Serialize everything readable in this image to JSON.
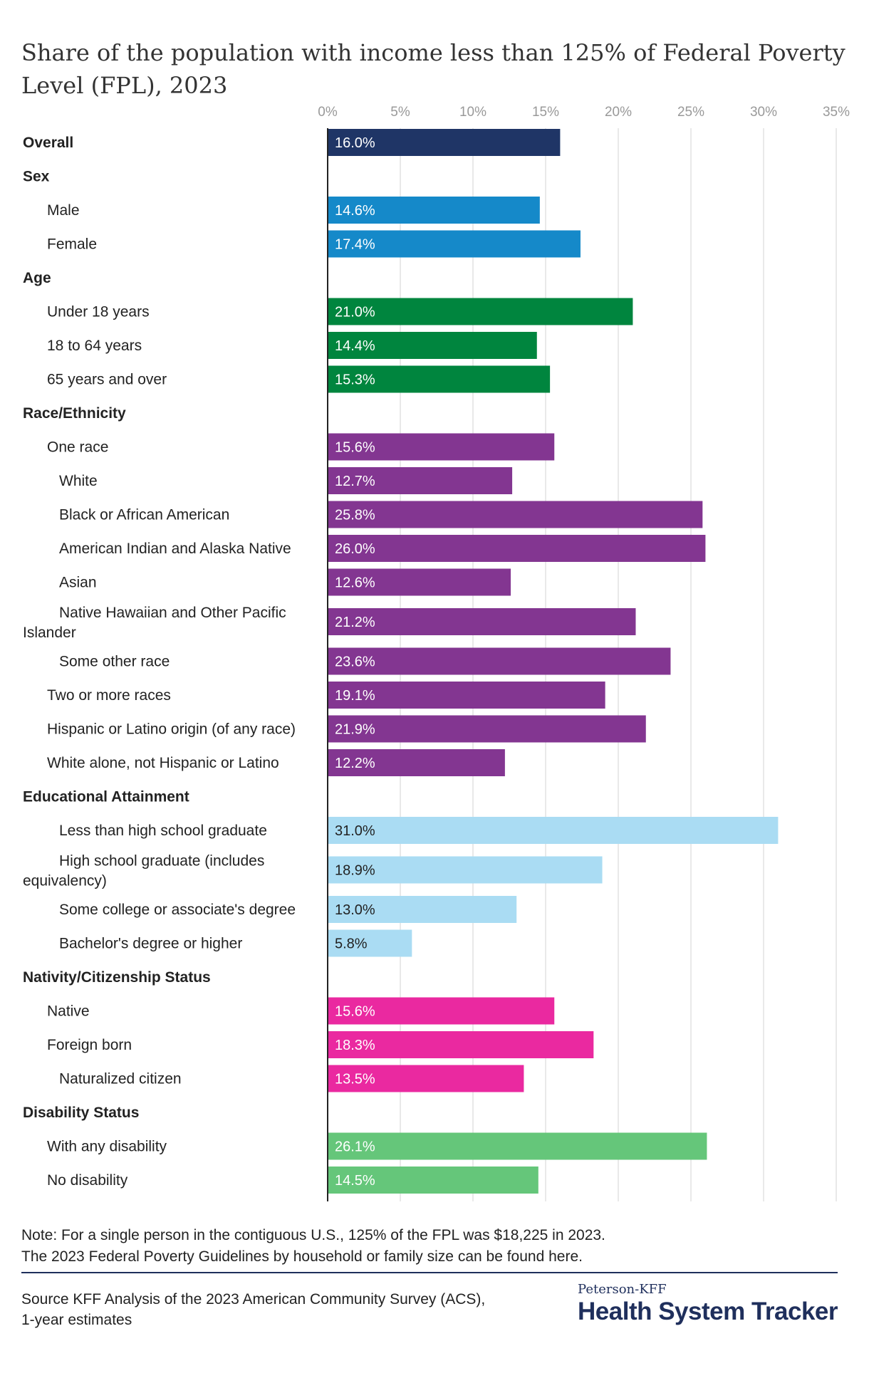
{
  "title": "Share of the population with income less than 125% of Federal Poverty Level (FPL), 2023",
  "note_line1": "Note: For a single person in the contiguous U.S., 125% of the FPL was $18,225 in 2023.",
  "note_line2": "The 2023 Federal Poverty Guidelines by household or family size can be found here.",
  "source": "Source KFF Analysis of the 2023 American Community Survey (ACS), 1-year estimates",
  "brand": {
    "top": "Peterson-KFF",
    "main": "Health System Tracker"
  },
  "colors": {
    "overall": "#1f3566",
    "sex": "#1589c9",
    "age": "#00853e",
    "race": "#833691",
    "education": "#aadcf3",
    "nativity": "#ea29a0",
    "disability": "#65c67a",
    "axis": "#222222",
    "grid": "#e2e2e2"
  },
  "chart_data": {
    "type": "bar",
    "orientation": "horizontal",
    "title": "Share of the population with income less than 125% of Federal Poverty Level (FPL), 2023",
    "xlim": [
      0,
      35
    ],
    "x_ticks": [
      "0%",
      "5%",
      "10%",
      "15%",
      "20%",
      "25%",
      "30%",
      "35%"
    ],
    "grid": true,
    "rows": [
      {
        "label": "Overall",
        "kind": "group",
        "value": 16.0,
        "value_label": "16.0%",
        "color_key": "overall"
      },
      {
        "label": "Sex",
        "kind": "group"
      },
      {
        "label": "Male",
        "kind": "item",
        "value": 14.6,
        "value_label": "14.6%",
        "color_key": "sex"
      },
      {
        "label": "Female",
        "kind": "item",
        "value": 17.4,
        "value_label": "17.4%",
        "color_key": "sex"
      },
      {
        "label": "Age",
        "kind": "group"
      },
      {
        "label": "Under 18 years",
        "kind": "item",
        "value": 21.0,
        "value_label": "21.0%",
        "color_key": "age"
      },
      {
        "label": "18 to 64 years",
        "kind": "item",
        "value": 14.4,
        "value_label": "14.4%",
        "color_key": "age"
      },
      {
        "label": "65 years and over",
        "kind": "item",
        "value": 15.3,
        "value_label": "15.3%",
        "color_key": "age"
      },
      {
        "label": "Race/Ethnicity",
        "kind": "group"
      },
      {
        "label": "One race",
        "kind": "item",
        "value": 15.6,
        "value_label": "15.6%",
        "color_key": "race"
      },
      {
        "label": "White",
        "kind": "sub",
        "value": 12.7,
        "value_label": "12.7%",
        "color_key": "race"
      },
      {
        "label": "Black or African American",
        "kind": "sub",
        "value": 25.8,
        "value_label": "25.8%",
        "color_key": "race"
      },
      {
        "label": "American Indian and Alaska Native",
        "kind": "sub",
        "value": 26.0,
        "value_label": "26.0%",
        "color_key": "race"
      },
      {
        "label": "Asian",
        "kind": "sub",
        "value": 12.6,
        "value_label": "12.6%",
        "color_key": "race"
      },
      {
        "label": "Native Hawaiian and Other Pacific",
        "label2": "Islander",
        "kind": "sub",
        "value": 21.2,
        "value_label": "21.2%",
        "color_key": "race"
      },
      {
        "label": "Some other race",
        "kind": "sub",
        "value": 23.6,
        "value_label": "23.6%",
        "color_key": "race"
      },
      {
        "label": "Two or more races",
        "kind": "item",
        "value": 19.1,
        "value_label": "19.1%",
        "color_key": "race"
      },
      {
        "label": "Hispanic or Latino origin (of any race)",
        "kind": "item",
        "value": 21.9,
        "value_label": "21.9%",
        "color_key": "race"
      },
      {
        "label": "White alone, not Hispanic or Latino",
        "kind": "item",
        "value": 12.2,
        "value_label": "12.2%",
        "color_key": "race"
      },
      {
        "label": "Educational Attainment",
        "kind": "group"
      },
      {
        "label": "Less than high school graduate",
        "kind": "sub",
        "value": 31.0,
        "value_label": "31.0%",
        "color_key": "education"
      },
      {
        "label": "High school graduate (includes",
        "label2": "equivalency)",
        "kind": "sub",
        "value": 18.9,
        "value_label": "18.9%",
        "color_key": "education"
      },
      {
        "label": "Some college or associate's degree",
        "kind": "sub",
        "value": 13.0,
        "value_label": "13.0%",
        "color_key": "education"
      },
      {
        "label": "Bachelor's degree or higher",
        "kind": "sub",
        "value": 5.8,
        "value_label": "5.8%",
        "color_key": "education"
      },
      {
        "label": "Nativity/Citizenship Status",
        "kind": "group"
      },
      {
        "label": "Native",
        "kind": "item",
        "value": 15.6,
        "value_label": "15.6%",
        "color_key": "nativity"
      },
      {
        "label": "Foreign born",
        "kind": "item",
        "value": 18.3,
        "value_label": "18.3%",
        "color_key": "nativity"
      },
      {
        "label": "Naturalized citizen",
        "kind": "sub",
        "value": 13.5,
        "value_label": "13.5%",
        "color_key": "nativity"
      },
      {
        "label": "Disability Status",
        "kind": "group"
      },
      {
        "label": "With any disability",
        "kind": "item",
        "value": 26.1,
        "value_label": "26.1%",
        "color_key": "disability"
      },
      {
        "label": "No disability",
        "kind": "item",
        "value": 14.5,
        "value_label": "14.5%",
        "color_key": "disability"
      }
    ]
  }
}
